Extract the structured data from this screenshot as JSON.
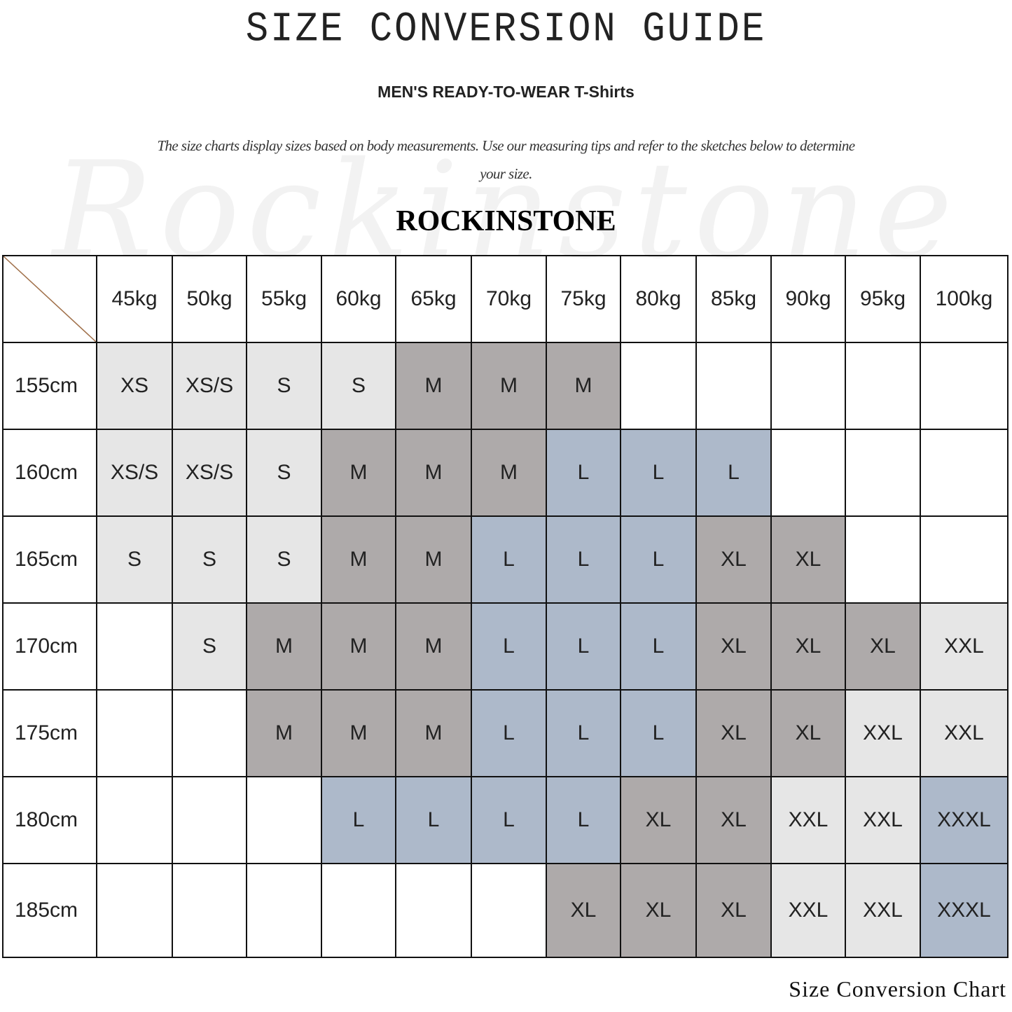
{
  "title": "SIZE CONVERSION GUIDE",
  "subtitle": "MEN'S READY-TO-WEAR T-Shirts",
  "description": "The size charts display sizes based on body measurements. Use our measuring tips and refer to the sketches below to determine your size.",
  "watermark": "Rockinstone",
  "brand": "ROCKINSTONE",
  "footer": "Size Conversion Chart",
  "colors": {
    "W": "#ffffff",
    "G": "#e6e6e6",
    "D": "#aeaaaa",
    "B": "#adb9ca",
    "diagonal": "#a0704a"
  },
  "table": {
    "columns": [
      "45kg",
      "50kg",
      "55kg",
      "60kg",
      "65kg",
      "70kg",
      "75kg",
      "80kg",
      "85kg",
      "90kg",
      "95kg",
      "100kg"
    ],
    "rows": [
      {
        "height": "155cm",
        "sizes": [
          "XS",
          "XS/S",
          "S",
          "S",
          "M",
          "M",
          "M",
          "",
          "",
          "",
          "",
          ""
        ],
        "shades": "GGGGDDDWWWWW"
      },
      {
        "height": "160cm",
        "sizes": [
          "XS/S",
          "XS/S",
          "S",
          "M",
          "M",
          "M",
          "L",
          "L",
          "L",
          "",
          "",
          ""
        ],
        "shades": "GGGDDDBBBWWW"
      },
      {
        "height": "165cm",
        "sizes": [
          "S",
          "S",
          "S",
          "M",
          "M",
          "L",
          "L",
          "L",
          "XL",
          "XL",
          "",
          ""
        ],
        "shades": "GGGDDBBBDDWW"
      },
      {
        "height": "170cm",
        "sizes": [
          "",
          "S",
          "M",
          "M",
          "M",
          "L",
          "L",
          "L",
          "XL",
          "XL",
          "XL",
          "XXL"
        ],
        "shades": "WGDDDBBBDDDG"
      },
      {
        "height": "175cm",
        "sizes": [
          "",
          "",
          "M",
          "M",
          "M",
          "L",
          "L",
          "L",
          "XL",
          "XL",
          "XXL",
          "XXL"
        ],
        "shades": "WWDDDBBBDDGG"
      },
      {
        "height": "180cm",
        "sizes": [
          "",
          "",
          "",
          "L",
          "L",
          "L",
          "L",
          "XL",
          "XL",
          "XXL",
          "XXL",
          "XXXL"
        ],
        "shades": "WWWBBBBDDGGB"
      },
      {
        "height": "185cm",
        "sizes": [
          "",
          "",
          "",
          "",
          "",
          "",
          "XL",
          "XL",
          "XL",
          "XXL",
          "XXL",
          "XXXL"
        ],
        "shades": "WWWWWWDDDGGB"
      }
    ]
  }
}
